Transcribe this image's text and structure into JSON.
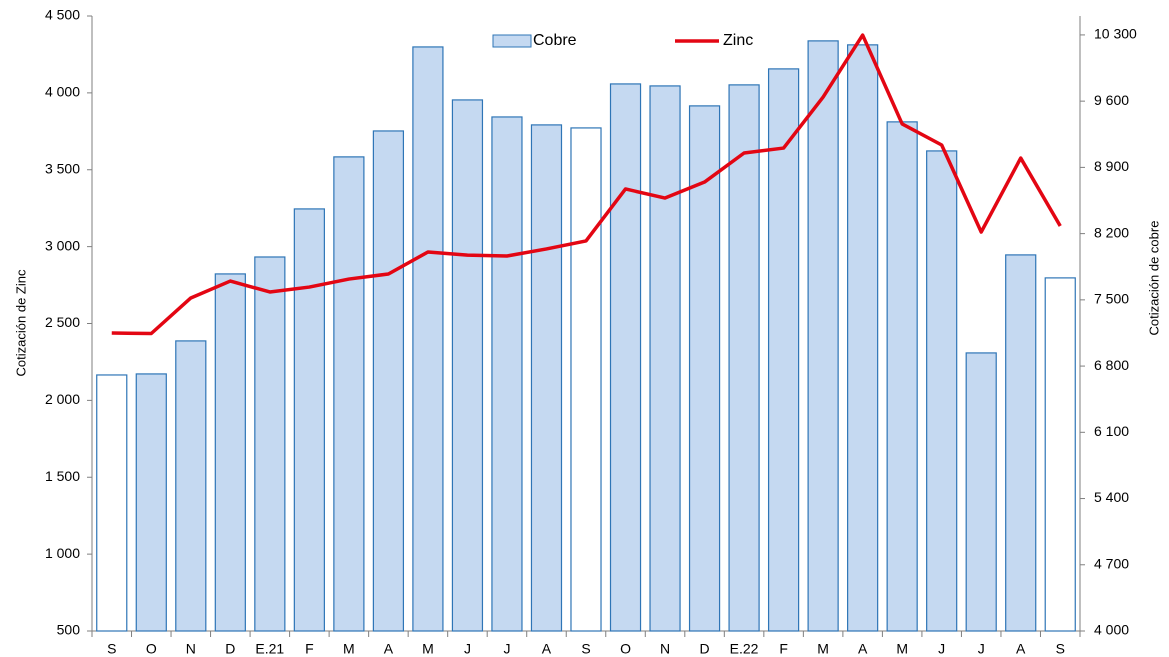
{
  "chart_data": {
    "type": "bar_line",
    "y_label": "Cotización de Zinc",
    "y2_label": "Cotización de cobre",
    "categories": [
      "S",
      "O",
      "N",
      "D",
      "E.21",
      "F",
      "M",
      "A",
      "M",
      "J",
      "J",
      "A",
      "S",
      "O",
      "N",
      "D",
      "E.22",
      "F",
      "M",
      "A",
      "M",
      "J",
      "J",
      "A",
      "S"
    ],
    "series": [
      {
        "name": "Cobre",
        "kind": "bar",
        "axis": "y2",
        "color": "#c5d9f1",
        "edge_color": "#2e75b6",
        "colors": [
          "#ffffff",
          "#c5d9f1",
          "#c5d9f1",
          "#c5d9f1",
          "#c5d9f1",
          "#c5d9f1",
          "#c5d9f1",
          "#c5d9f1",
          "#c5d9f1",
          "#c5d9f1",
          "#c5d9f1",
          "#c5d9f1",
          "#ffffff",
          "#c5d9f1",
          "#c5d9f1",
          "#c5d9f1",
          "#c5d9f1",
          "#c5d9f1",
          "#c5d9f1",
          "#c5d9f1",
          "#c5d9f1",
          "#c5d9f1",
          "#c5d9f1",
          "#c5d9f1",
          "#ffffff"
        ],
        "values": [
          6706,
          6717,
          7066,
          7774,
          7953,
          8461,
          9011,
          9285,
          10173,
          9613,
          9433,
          9349,
          9317,
          9782,
          9761,
          9550,
          9772,
          9941,
          10237,
          10195,
          9381,
          9074,
          6939,
          7975,
          7732
        ]
      },
      {
        "name": "Zinc",
        "kind": "line",
        "axis": "y",
        "color": "#e30613",
        "values": [
          2438,
          2435,
          2666,
          2776,
          2705,
          2737,
          2789,
          2822,
          2965,
          2945,
          2939,
          2985,
          3037,
          3375,
          3316,
          3420,
          3609,
          3641,
          3973,
          4376,
          3798,
          3661,
          3095,
          3576,
          3134
        ]
      }
    ],
    "ylim": [
      500,
      4500
    ],
    "yticks": [
      500,
      {
        "value": 1000,
        "label": "1 000"
      },
      {
        "value": 1500,
        "label": "1 500"
      },
      {
        "value": 2000,
        "label": "2 000"
      },
      {
        "value": 2500,
        "label": "2 500"
      },
      {
        "value": 3000,
        "label": "3 000"
      },
      {
        "value": 3500,
        "label": "3 500"
      },
      {
        "value": 4000,
        "label": "4 000"
      },
      {
        "value": 4500,
        "label": "4 500"
      }
    ],
    "y2lim": [
      4000,
      10500
    ],
    "y2ticks": [
      {
        "value": 4000,
        "label": "4 000"
      },
      {
        "value": 4700,
        "label": "4 700"
      },
      {
        "value": 5400,
        "label": "5 400"
      },
      {
        "value": 6100,
        "label": "6 100"
      },
      {
        "value": 6800,
        "label": "6 800"
      },
      {
        "value": 7500,
        "label": "7 500"
      },
      {
        "value": 8200,
        "label": "8 200"
      },
      {
        "value": 8900,
        "label": "8 900"
      },
      {
        "value": 9600,
        "label": "9 600"
      },
      {
        "value": 10300,
        "label": "10 300"
      }
    ],
    "grid": false
  }
}
